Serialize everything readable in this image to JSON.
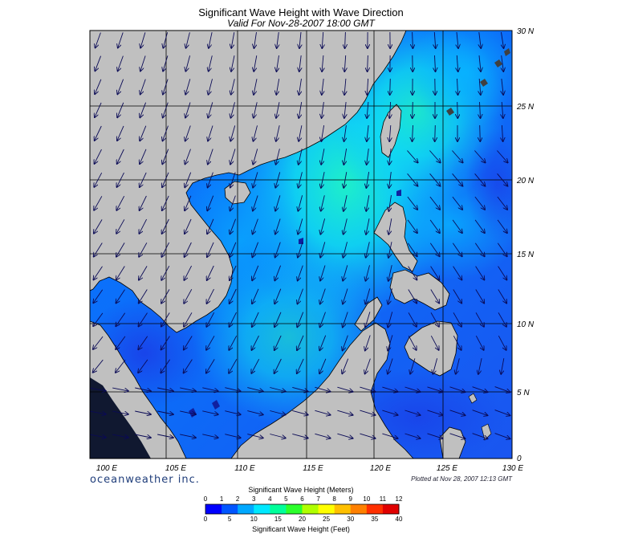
{
  "header": {
    "title": "Significant Wave Height with Wave Direction",
    "subtitle": "Valid For Nov-28-2007 18:00 GMT"
  },
  "map": {
    "lon_labels": [
      "100 E",
      "105 E",
      "110 E",
      "115 E",
      "120 E",
      "125 E",
      "130 E"
    ],
    "lat_labels": [
      "30 N",
      "25 N",
      "20 N",
      "15 N",
      "10 N",
      "5 N",
      "0"
    ],
    "land_color": "#c0c0c0",
    "grid_color": "#000000",
    "arrow_color": "#0a0a55"
  },
  "footer": {
    "brand": "oceanweather inc.",
    "plotted": "Plotted at Nov 28, 2007 12:13 GMT"
  },
  "colorbar": {
    "title_top": "Significant Wave Height (Meters)",
    "title_bottom": "Significant Wave Height (Feet)",
    "meters": [
      "0",
      "1",
      "2",
      "3",
      "4",
      "5",
      "6",
      "7",
      "8",
      "9",
      "10",
      "11",
      "12"
    ],
    "feet": [
      "0",
      "5",
      "10",
      "15",
      "20",
      "25",
      "30",
      "35",
      "40"
    ],
    "colors": [
      "#0000ff",
      "#0055ff",
      "#00a8ff",
      "#00e8ff",
      "#00ff9a",
      "#2cff2c",
      "#b0ff00",
      "#ffff00",
      "#ffc000",
      "#ff8000",
      "#ff3000",
      "#e00000"
    ]
  }
}
